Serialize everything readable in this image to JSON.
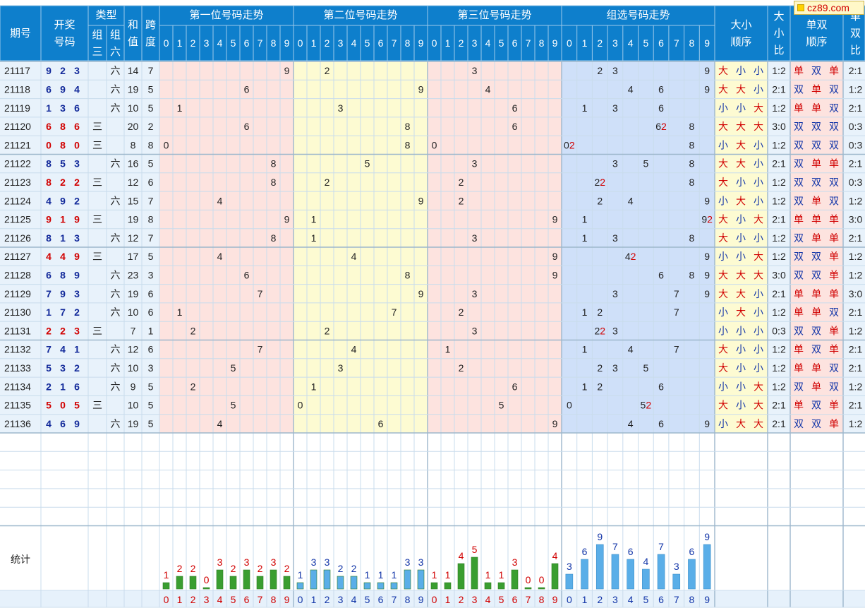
{
  "headers": {
    "issue": "期号",
    "draw_numbers": [
      "开奖",
      "号码"
    ],
    "type": "类型",
    "type_zu3": [
      "组",
      "三"
    ],
    "type_zu6": [
      "组",
      "六"
    ],
    "sum": [
      "和",
      "值"
    ],
    "span": [
      "跨",
      "度"
    ],
    "pos1": "第一位号码走势",
    "pos2": "第二位号码走势",
    "pos3": "第三位号码走势",
    "group": "组选号码走势",
    "size_order": [
      "大小",
      "顺序"
    ],
    "size_ratio": [
      "大",
      "小",
      "比"
    ],
    "oe_order": [
      "单双",
      "顺序"
    ],
    "oe_ratio": [
      "单",
      "双",
      "比"
    ],
    "digits": [
      "0",
      "1",
      "2",
      "3",
      "4",
      "5",
      "6",
      "7",
      "8",
      "9"
    ]
  },
  "logo_text": "cz89.com",
  "stats_label": "统计",
  "labels": {
    "zu3": "三",
    "zu6": "六",
    "big": "大",
    "small": "小",
    "odd": "单",
    "even": "双"
  },
  "rows": [
    {
      "issue": "21117",
      "nums": [
        9,
        2,
        3
      ],
      "type": "六",
      "sum": "14",
      "span": "7",
      "size": [
        "大",
        "小",
        "小"
      ],
      "size_ratio": "1:2",
      "oe": [
        "单",
        "双",
        "单"
      ],
      "oe_ratio": "2:1"
    },
    {
      "issue": "21118",
      "nums": [
        6,
        9,
        4
      ],
      "type": "六",
      "sum": "19",
      "span": "5",
      "size": [
        "大",
        "大",
        "小"
      ],
      "size_ratio": "2:1",
      "oe": [
        "双",
        "单",
        "双"
      ],
      "oe_ratio": "1:2"
    },
    {
      "issue": "21119",
      "nums": [
        1,
        3,
        6
      ],
      "type": "六",
      "sum": "10",
      "span": "5",
      "size": [
        "小",
        "小",
        "大"
      ],
      "size_ratio": "1:2",
      "oe": [
        "单",
        "单",
        "双"
      ],
      "oe_ratio": "2:1"
    },
    {
      "issue": "21120",
      "nums": [
        6,
        8,
        6
      ],
      "type": "三",
      "sum": "20",
      "span": "2",
      "size": [
        "大",
        "大",
        "大"
      ],
      "size_ratio": "3:0",
      "oe": [
        "双",
        "双",
        "双"
      ],
      "oe_ratio": "0:3"
    },
    {
      "issue": "21121",
      "nums": [
        0,
        8,
        0
      ],
      "type": "三",
      "sum": "8",
      "span": "8",
      "size": [
        "小",
        "大",
        "小"
      ],
      "size_ratio": "1:2",
      "oe": [
        "双",
        "双",
        "双"
      ],
      "oe_ratio": "0:3"
    },
    {
      "issue": "21122",
      "nums": [
        8,
        5,
        3
      ],
      "type": "六",
      "sum": "16",
      "span": "5",
      "size": [
        "大",
        "大",
        "小"
      ],
      "size_ratio": "2:1",
      "oe": [
        "双",
        "单",
        "单"
      ],
      "oe_ratio": "2:1"
    },
    {
      "issue": "21123",
      "nums": [
        8,
        2,
        2
      ],
      "type": "三",
      "sum": "12",
      "span": "6",
      "size": [
        "大",
        "小",
        "小"
      ],
      "size_ratio": "1:2",
      "oe": [
        "双",
        "双",
        "双"
      ],
      "oe_ratio": "0:3"
    },
    {
      "issue": "21124",
      "nums": [
        4,
        9,
        2
      ],
      "type": "六",
      "sum": "15",
      "span": "7",
      "size": [
        "小",
        "大",
        "小"
      ],
      "size_ratio": "1:2",
      "oe": [
        "双",
        "单",
        "双"
      ],
      "oe_ratio": "1:2"
    },
    {
      "issue": "21125",
      "nums": [
        9,
        1,
        9
      ],
      "type": "三",
      "sum": "19",
      "span": "8",
      "size": [
        "大",
        "小",
        "大"
      ],
      "size_ratio": "2:1",
      "oe": [
        "单",
        "单",
        "单"
      ],
      "oe_ratio": "3:0"
    },
    {
      "issue": "21126",
      "nums": [
        8,
        1,
        3
      ],
      "type": "六",
      "sum": "12",
      "span": "7",
      "size": [
        "大",
        "小",
        "小"
      ],
      "size_ratio": "1:2",
      "oe": [
        "双",
        "单",
        "单"
      ],
      "oe_ratio": "2:1"
    },
    {
      "issue": "21127",
      "nums": [
        4,
        4,
        9
      ],
      "type": "三",
      "sum": "17",
      "span": "5",
      "size": [
        "小",
        "小",
        "大"
      ],
      "size_ratio": "1:2",
      "oe": [
        "双",
        "双",
        "单"
      ],
      "oe_ratio": "1:2"
    },
    {
      "issue": "21128",
      "nums": [
        6,
        8,
        9
      ],
      "type": "六",
      "sum": "23",
      "span": "3",
      "size": [
        "大",
        "大",
        "大"
      ],
      "size_ratio": "3:0",
      "oe": [
        "双",
        "双",
        "单"
      ],
      "oe_ratio": "1:2"
    },
    {
      "issue": "21129",
      "nums": [
        7,
        9,
        3
      ],
      "type": "六",
      "sum": "19",
      "span": "6",
      "size": [
        "大",
        "大",
        "小"
      ],
      "size_ratio": "2:1",
      "oe": [
        "单",
        "单",
        "单"
      ],
      "oe_ratio": "3:0"
    },
    {
      "issue": "21130",
      "nums": [
        1,
        7,
        2
      ],
      "type": "六",
      "sum": "10",
      "span": "6",
      "size": [
        "小",
        "大",
        "小"
      ],
      "size_ratio": "1:2",
      "oe": [
        "单",
        "单",
        "双"
      ],
      "oe_ratio": "2:1"
    },
    {
      "issue": "21131",
      "nums": [
        2,
        2,
        3
      ],
      "type": "三",
      "sum": "7",
      "span": "1",
      "size": [
        "小",
        "小",
        "小"
      ],
      "size_ratio": "0:3",
      "oe": [
        "双",
        "双",
        "单"
      ],
      "oe_ratio": "1:2"
    },
    {
      "issue": "21132",
      "nums": [
        7,
        4,
        1
      ],
      "type": "六",
      "sum": "12",
      "span": "6",
      "size": [
        "大",
        "小",
        "小"
      ],
      "size_ratio": "1:2",
      "oe": [
        "单",
        "双",
        "单"
      ],
      "oe_ratio": "2:1"
    },
    {
      "issue": "21133",
      "nums": [
        5,
        3,
        2
      ],
      "type": "六",
      "sum": "10",
      "span": "3",
      "size": [
        "大",
        "小",
        "小"
      ],
      "size_ratio": "1:2",
      "oe": [
        "单",
        "单",
        "双"
      ],
      "oe_ratio": "2:1"
    },
    {
      "issue": "21134",
      "nums": [
        2,
        1,
        6
      ],
      "type": "六",
      "sum": "9",
      "span": "5",
      "size": [
        "小",
        "小",
        "大"
      ],
      "size_ratio": "1:2",
      "oe": [
        "双",
        "单",
        "双"
      ],
      "oe_ratio": "1:2"
    },
    {
      "issue": "21135",
      "nums": [
        5,
        0,
        5
      ],
      "type": "三",
      "sum": "10",
      "span": "5",
      "size": [
        "大",
        "小",
        "大"
      ],
      "size_ratio": "2:1",
      "oe": [
        "单",
        "双",
        "单"
      ],
      "oe_ratio": "2:1"
    },
    {
      "issue": "21136",
      "nums": [
        4,
        6,
        9
      ],
      "type": "六",
      "sum": "19",
      "span": "5",
      "size": [
        "小",
        "大",
        "大"
      ],
      "size_ratio": "2:1",
      "oe": [
        "双",
        "双",
        "单"
      ],
      "oe_ratio": "1:2"
    }
  ],
  "stats": {
    "pos1": [
      1,
      2,
      2,
      0,
      3,
      2,
      3,
      2,
      3,
      2
    ],
    "pos2": [
      1,
      3,
      3,
      2,
      2,
      1,
      1,
      1,
      3,
      3
    ],
    "pos3": [
      1,
      1,
      4,
      5,
      1,
      1,
      3,
      0,
      0,
      4
    ],
    "group": [
      3,
      6,
      9,
      7,
      6,
      4,
      7,
      3,
      6,
      9
    ]
  },
  "colors": {
    "header": "#0e7fcc",
    "pos1_bg": "#fde3df",
    "pos2_bg": "#fdfbd2",
    "pos3_bg": "#fde3df",
    "group_bg": "#cfe0f9",
    "size_bg": "#fdfbd2",
    "oe_bg": "#fde3df",
    "stats_bg": "#e6f1fb",
    "bar_green": "#3a9e30",
    "bar_blue": "#5aaee8"
  }
}
